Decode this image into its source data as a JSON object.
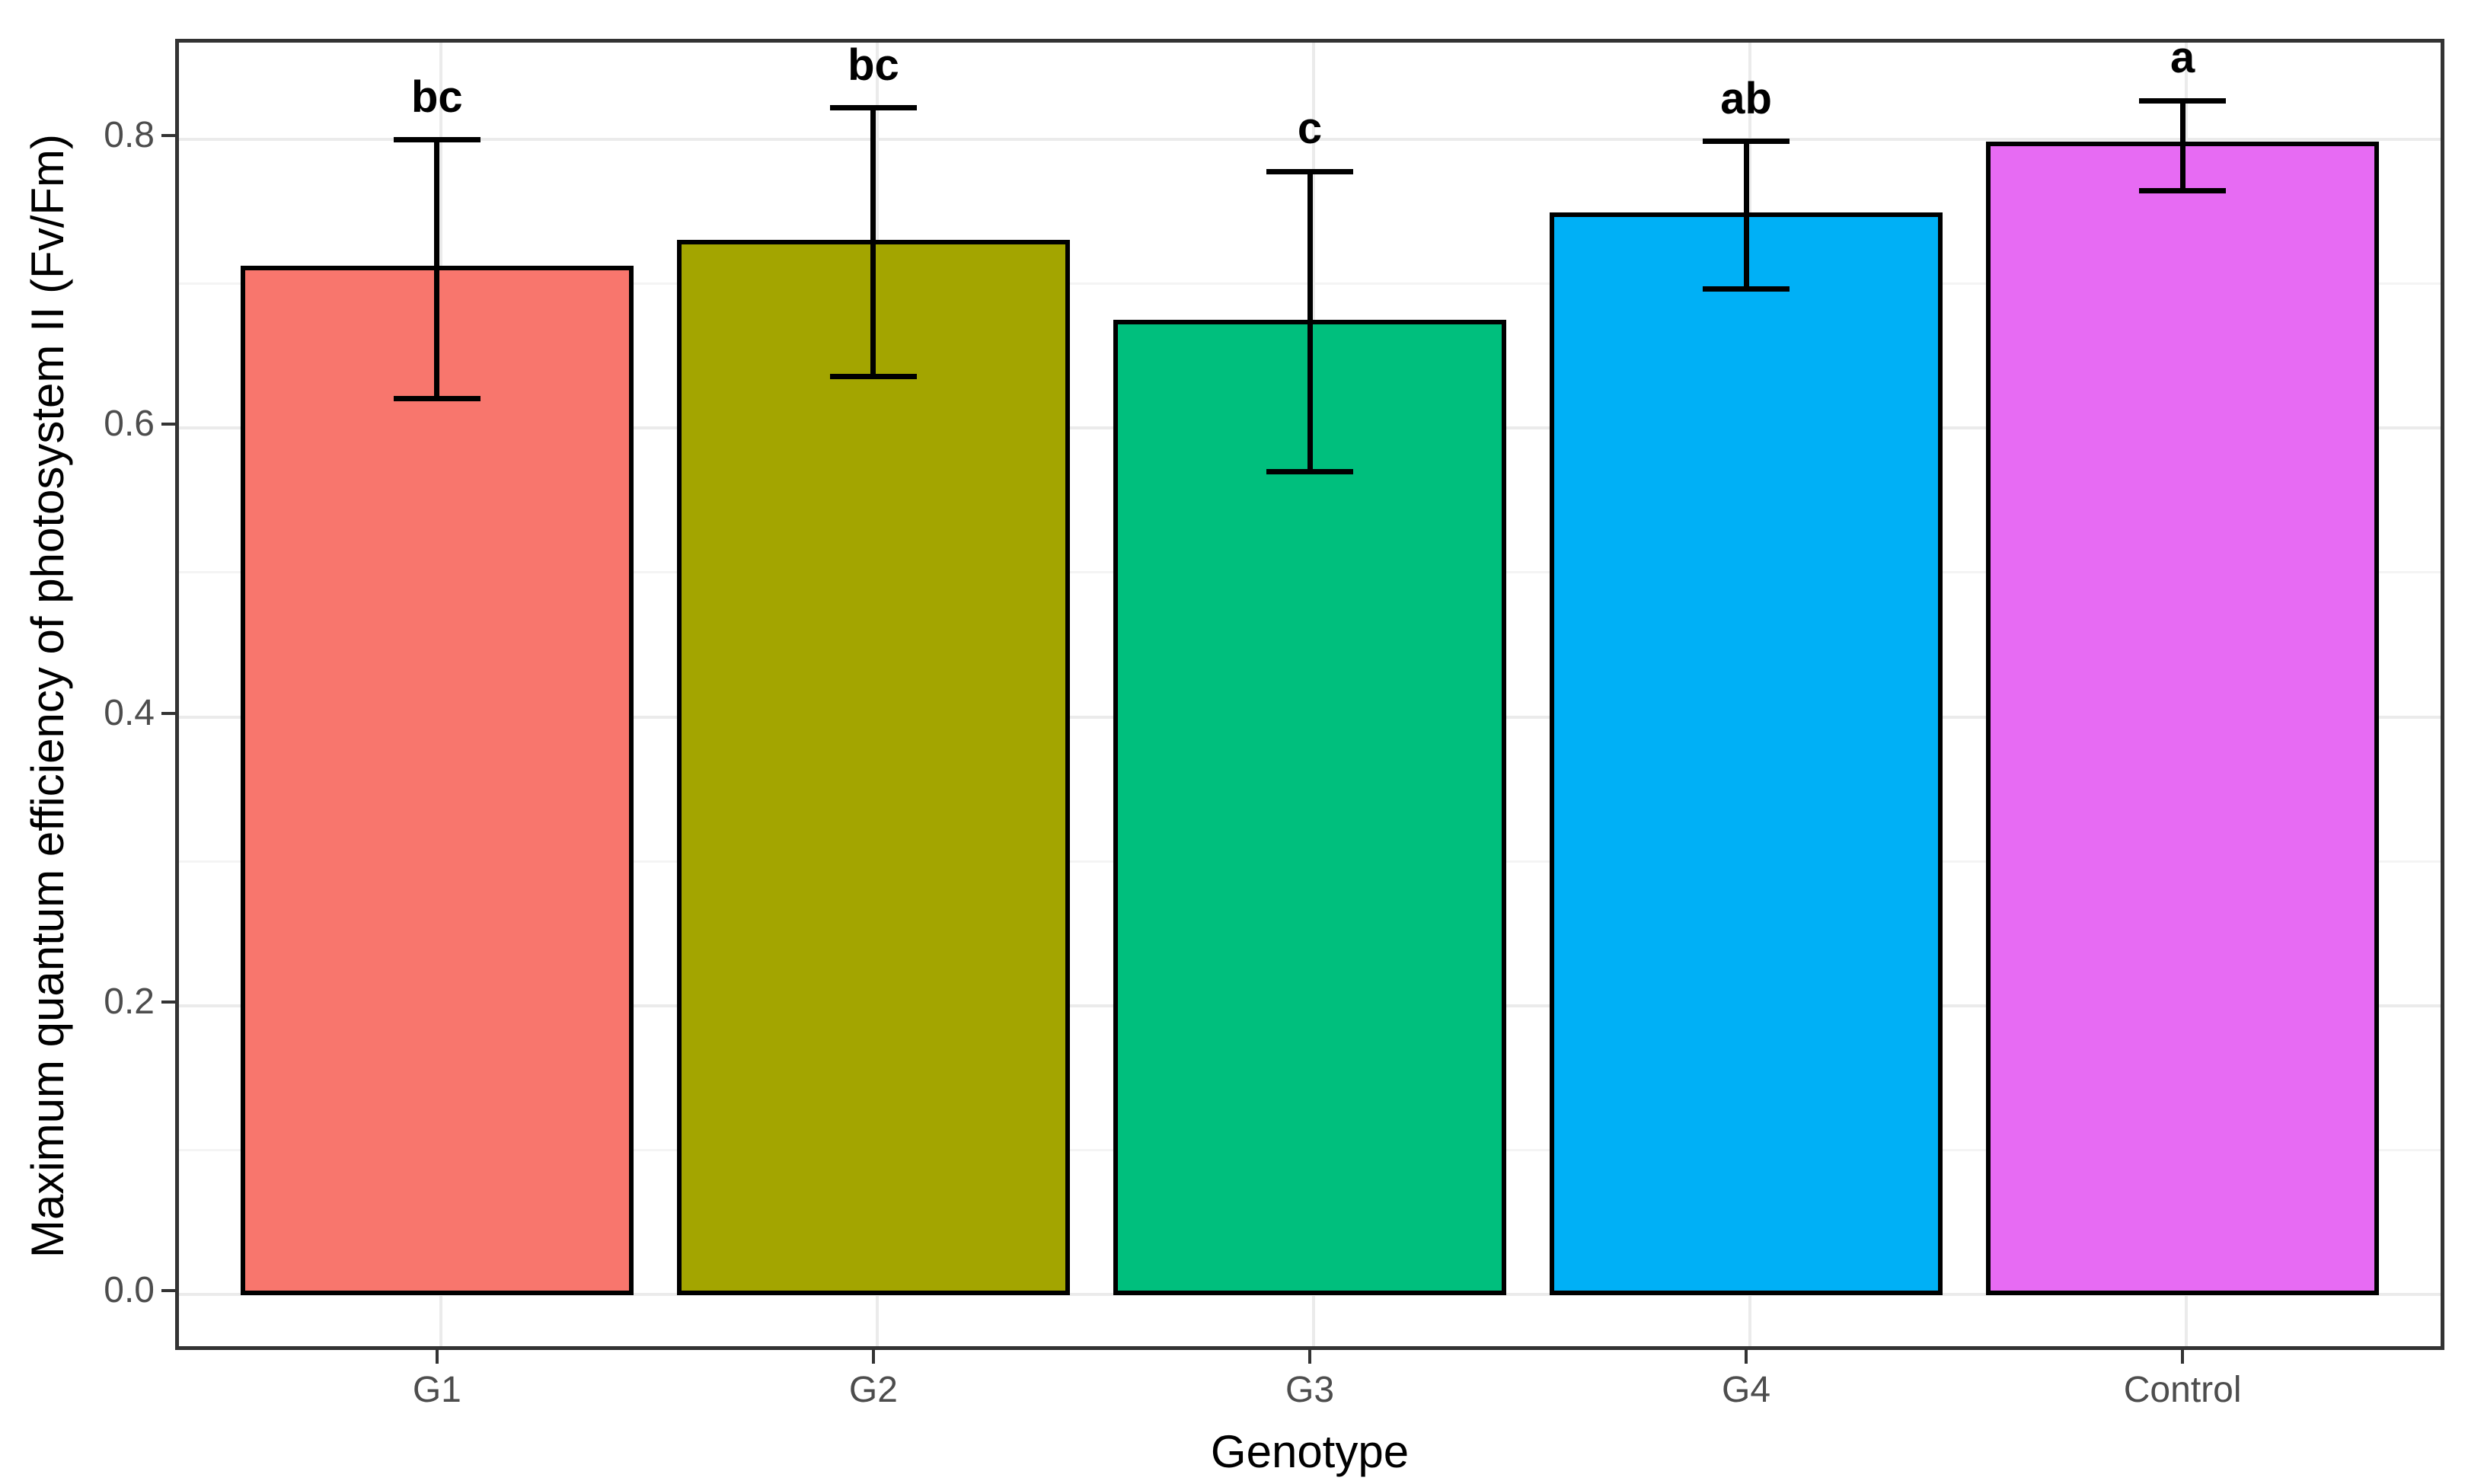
{
  "chart_data": {
    "type": "bar",
    "xlabel": "Genotype",
    "ylabel": "Maximum quantum efficiency of photosystem II (Fv/Fm)",
    "categories": [
      "G1",
      "G2",
      "G3",
      "G4",
      "Control"
    ],
    "values": [
      0.708,
      0.726,
      0.671,
      0.745,
      0.794
    ],
    "error_upper": [
      0.797,
      0.819,
      0.775,
      0.796,
      0.824
    ],
    "error_lower": [
      0.618,
      0.633,
      0.567,
      0.694,
      0.762
    ],
    "sig_letters": [
      "bc",
      "bc",
      "c",
      "ab",
      "a"
    ],
    "bar_colors": [
      "#F8766D",
      "#A3A500",
      "#00BF7D",
      "#00B0F6",
      "#E76BF3"
    ],
    "bar_border_color": "#000000",
    "error_bar_color": "#000000",
    "y_tick_labels": [
      "0.0",
      "0.2",
      "0.4",
      "0.6",
      "0.8"
    ],
    "y_tick_values": [
      0.0,
      0.2,
      0.4,
      0.6,
      0.8
    ],
    "y_minor_values": [
      0.1,
      0.3,
      0.5,
      0.7
    ],
    "ylim": [
      -0.0411,
      0.867
    ],
    "grid": "major and minor horizontal, major vertical at categories",
    "legend": "none",
    "panel_border_color": "#333333",
    "grid_major_color": "#EBEBEB",
    "grid_minor_color": "#F4F4F4",
    "tick_label_color": "#4D4D4D",
    "axis_title_color": "#000000"
  }
}
